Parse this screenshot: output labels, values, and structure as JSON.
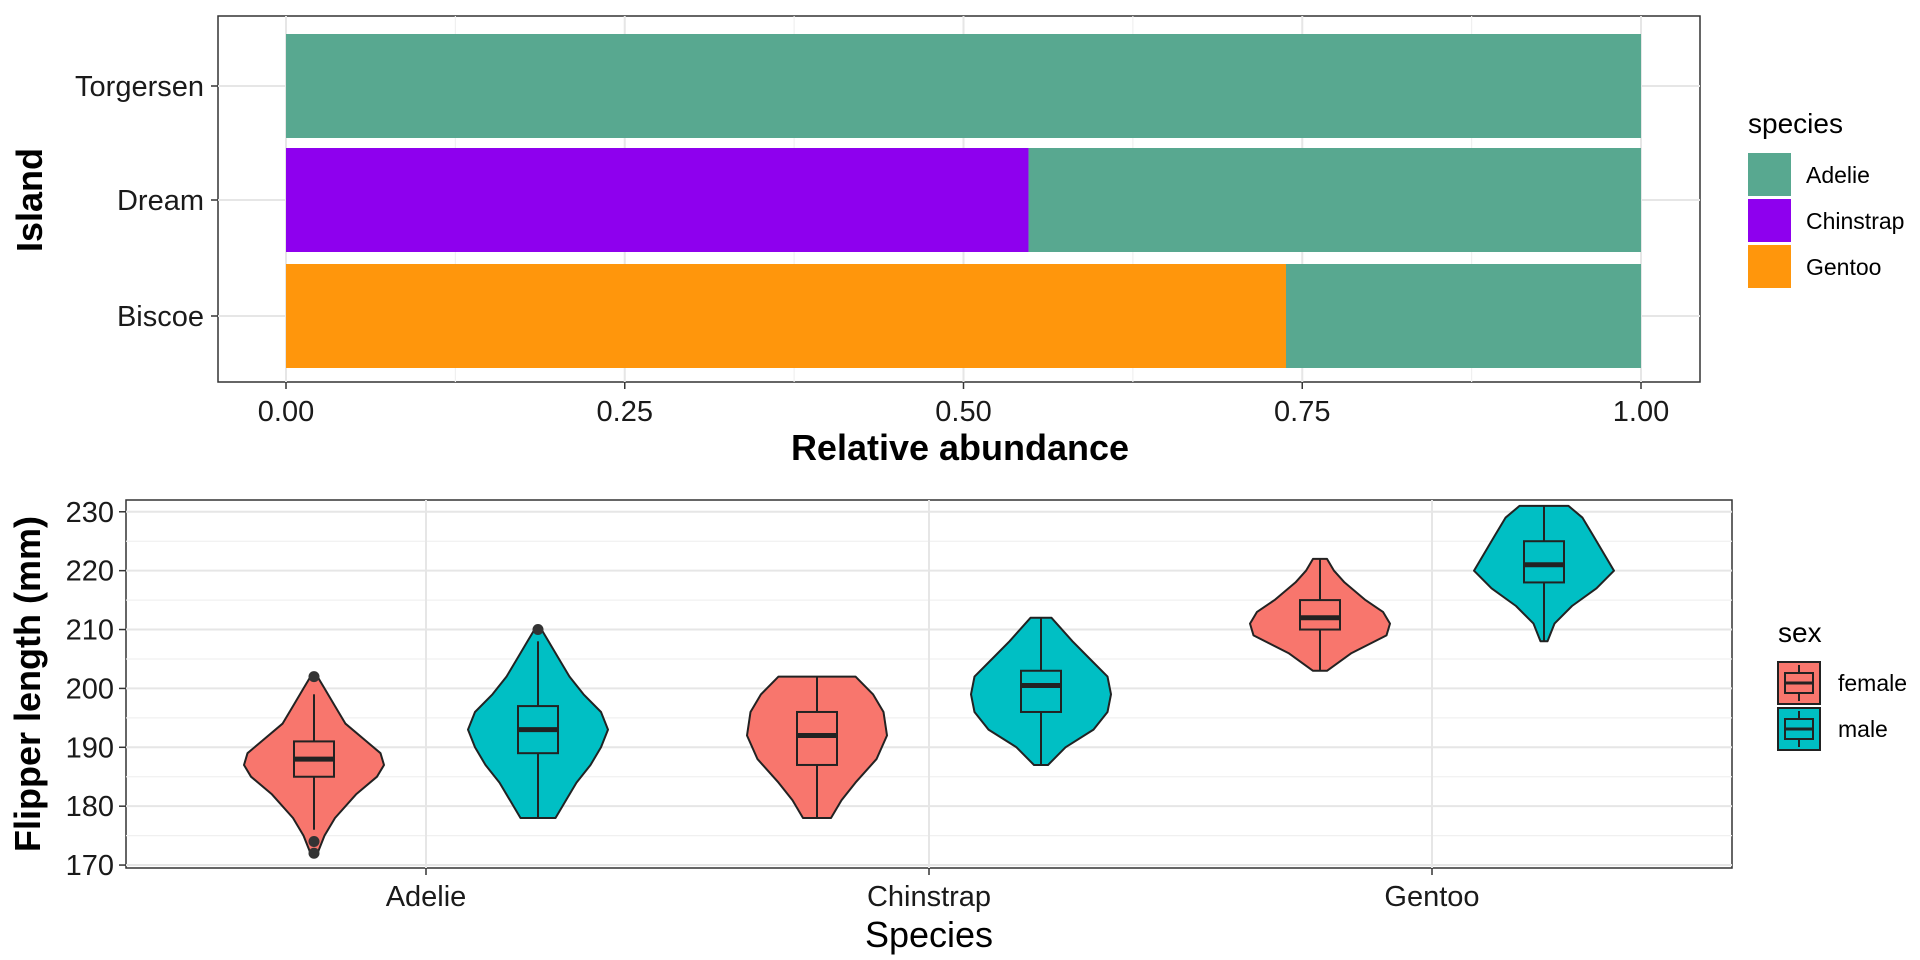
{
  "chart_data": [
    {
      "type": "bar",
      "orientation": "horizontal",
      "stacked": true,
      "xlabel": "Relative abundance",
      "ylabel": "Island",
      "xlim": [
        0,
        1
      ],
      "x_ticks": [
        "0.00",
        "0.25",
        "0.50",
        "0.75",
        "1.00"
      ],
      "categories": [
        "Torgersen",
        "Dream",
        "Biscoe"
      ],
      "series": [
        {
          "name": "Adelie",
          "color": "#58A890",
          "values": [
            1.0,
            0.452,
            0.262
          ]
        },
        {
          "name": "Chinstrap",
          "color": "#8E00EE",
          "values": [
            0.0,
            0.548,
            0.0
          ]
        },
        {
          "name": "Gentoo",
          "color": "#FF960C",
          "values": [
            0.0,
            0.0,
            0.738
          ]
        }
      ],
      "legend": {
        "title": "species",
        "position": "right",
        "entries": [
          "Adelie",
          "Chinstrap",
          "Gentoo"
        ]
      },
      "grid": true
    },
    {
      "type": "violin",
      "xlabel": "Species",
      "ylabel": "Flipper length (mm)",
      "ylim": [
        169.5,
        232
      ],
      "y_ticks": [
        "170",
        "180",
        "190",
        "200",
        "210",
        "220",
        "230"
      ],
      "categories": [
        "Adelie",
        "Chinstrap",
        "Gentoo"
      ],
      "legend": {
        "title": "sex",
        "position": "right",
        "entries": [
          "female",
          "male"
        ]
      },
      "series": [
        {
          "name": "female",
          "color": "#F8766D",
          "boxes": [
            {
              "category": "Adelie",
              "min": 176,
              "q1": 185,
              "median": 188,
              "q3": 191,
              "max": 199,
              "outliers": [
                172,
                174,
                202
              ],
              "density": [
                [
                  172,
                  0.05
                ],
                [
                  175,
                  0.15
                ],
                [
                  178,
                  0.3
                ],
                [
                  182,
                  0.6
                ],
                [
                  185,
                  0.9
                ],
                [
                  187,
                  1.0
                ],
                [
                  189,
                  0.95
                ],
                [
                  191,
                  0.75
                ],
                [
                  194,
                  0.45
                ],
                [
                  197,
                  0.3
                ],
                [
                  200,
                  0.15
                ],
                [
                  202,
                  0.05
                ]
              ]
            },
            {
              "category": "Chinstrap",
              "min": 178,
              "q1": 187,
              "median": 192,
              "q3": 196,
              "max": 202,
              "density": [
                [
                  178,
                  0.2
                ],
                [
                  181,
                  0.35
                ],
                [
                  184,
                  0.55
                ],
                [
                  188,
                  0.85
                ],
                [
                  192,
                  1.0
                ],
                [
                  196,
                  0.95
                ],
                [
                  199,
                  0.8
                ],
                [
                  202,
                  0.55
                ]
              ]
            },
            {
              "category": "Gentoo",
              "min": 203,
              "q1": 210,
              "median": 212,
              "q3": 215,
              "max": 222,
              "density": [
                [
                  203,
                  0.1
                ],
                [
                  206,
                  0.45
                ],
                [
                  209,
                  0.95
                ],
                [
                  211,
                  1.0
                ],
                [
                  213,
                  0.9
                ],
                [
                  215,
                  0.65
                ],
                [
                  218,
                  0.35
                ],
                [
                  220,
                  0.2
                ],
                [
                  222,
                  0.1
                ]
              ]
            }
          ]
        },
        {
          "name": "male",
          "color": "#00BFC4",
          "boxes": [
            {
              "category": "Adelie",
              "min": 178,
              "q1": 189,
              "median": 193,
              "q3": 197,
              "max": 208,
              "outliers": [
                210
              ],
              "density": [
                [
                  178,
                  0.25
                ],
                [
                  181,
                  0.4
                ],
                [
                  184,
                  0.55
                ],
                [
                  187,
                  0.75
                ],
                [
                  190,
                  0.9
                ],
                [
                  193,
                  1.0
                ],
                [
                  196,
                  0.9
                ],
                [
                  199,
                  0.65
                ],
                [
                  202,
                  0.45
                ],
                [
                  205,
                  0.3
                ],
                [
                  208,
                  0.15
                ],
                [
                  210,
                  0.05
                ]
              ]
            },
            {
              "category": "Chinstrap",
              "min": 187,
              "q1": 196,
              "median": 200.5,
              "q3": 203,
              "max": 212,
              "density": [
                [
                  187,
                  0.1
                ],
                [
                  190,
                  0.35
                ],
                [
                  193,
                  0.75
                ],
                [
                  196,
                  0.95
                ],
                [
                  199,
                  1.0
                ],
                [
                  202,
                  0.95
                ],
                [
                  205,
                  0.7
                ],
                [
                  208,
                  0.45
                ],
                [
                  212,
                  0.15
                ]
              ]
            },
            {
              "category": "Gentoo",
              "min": 208,
              "q1": 218,
              "median": 221,
              "q3": 225,
              "max": 231,
              "density": [
                [
                  208,
                  0.05
                ],
                [
                  211,
                  0.15
                ],
                [
                  214,
                  0.4
                ],
                [
                  217,
                  0.75
                ],
                [
                  220,
                  1.0
                ],
                [
                  223,
                  0.85
                ],
                [
                  226,
                  0.7
                ],
                [
                  229,
                  0.55
                ],
                [
                  231,
                  0.35
                ]
              ]
            }
          ]
        }
      ],
      "grid": true
    }
  ]
}
